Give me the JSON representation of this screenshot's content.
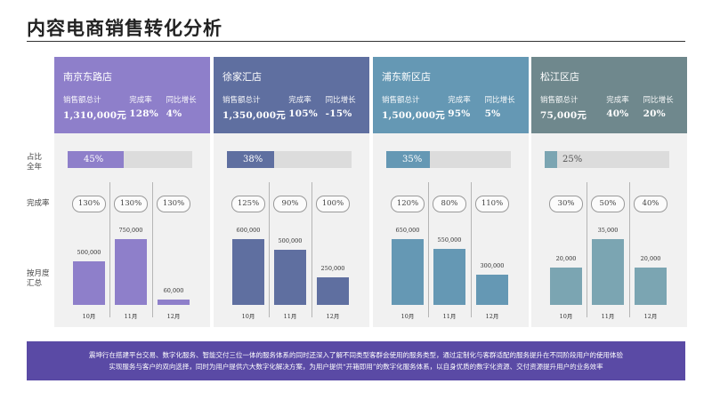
{
  "title": "内容电商销售转化分析",
  "side_labels": {
    "share": "占比\n全年",
    "completion": "完成率",
    "monthly": "按月度\n汇总"
  },
  "chart_data": {
    "type": "bar",
    "categories": [
      "10月",
      "11月",
      "12月"
    ],
    "stores": [
      {
        "name": "南京东路店",
        "color": "#8e7fca",
        "metrics": {
          "total_label": "销售额总计",
          "total": "1,310,000元",
          "rate_label": "完成率",
          "rate": "128%",
          "yoy_label": "同比增长",
          "yoy": "4%"
        },
        "share": 45,
        "share_label": "45%",
        "completion": [
          "130%",
          "130%",
          "130%"
        ],
        "series": [
          {
            "values": [
              500000,
              750000,
              60000
            ],
            "labels": [
              "500,000",
              "750,000",
              "60,000"
            ]
          }
        ]
      },
      {
        "name": "徐家汇店",
        "color": "#5f6fa0",
        "metrics": {
          "total_label": "销售额总计",
          "total": "1,350,000元",
          "rate_label": "完成率",
          "rate": "105%",
          "yoy_label": "同比增长",
          "yoy": "-15%"
        },
        "share": 38,
        "share_label": "38%",
        "completion": [
          "125%",
          "90%",
          "100%"
        ],
        "series": [
          {
            "values": [
              600000,
              500000,
              250000
            ],
            "labels": [
              "600,000",
              "500,000",
              "250,000"
            ]
          }
        ]
      },
      {
        "name": "浦东新区店",
        "color": "#6598b4",
        "metrics": {
          "total_label": "销售额总计",
          "total": "1,500,000元",
          "rate_label": "完成率",
          "rate": "95%",
          "yoy_label": "同比增长",
          "yoy": "5%"
        },
        "share": 35,
        "share_label": "35%",
        "completion": [
          "120%",
          "80%",
          "110%"
        ],
        "series": [
          {
            "values": [
              650000,
              550000,
              300000
            ],
            "labels": [
              "650,000",
              "550,000",
              "300,000"
            ]
          }
        ]
      },
      {
        "name": "松江区店",
        "color": "#6f888d",
        "bar_color": "#7ba5b2",
        "metrics": {
          "total_label": "销售额总计",
          "total": "75,000元",
          "rate_label": "完成率",
          "rate": "40%",
          "yoy_label": "同比增长",
          "yoy": "20%"
        },
        "share": 25,
        "share_label": "25%",
        "completion": [
          "30%",
          "50%",
          "40%"
        ],
        "series": [
          {
            "values": [
              20000,
              35000,
              20000
            ],
            "labels": [
              "20,000",
              "35,000",
              "20,000"
            ]
          }
        ]
      }
    ]
  },
  "footer": {
    "line1": "震坤行在搭建平台交易、数字化服务、智能交付三位一体的服务体系的同时还深入了解不同类型客群会使用的服务类型，通过定制化与客群适配的服务提升在不同阶段用户的使用体验",
    "line2": "实现服务与客户的双向选择，同时为用户提供六大数字化解决方案，为用户提供“开箱即用”的数字化服务体系，以自身优质的数字化资源、交付资源提升用户的业务效率"
  }
}
